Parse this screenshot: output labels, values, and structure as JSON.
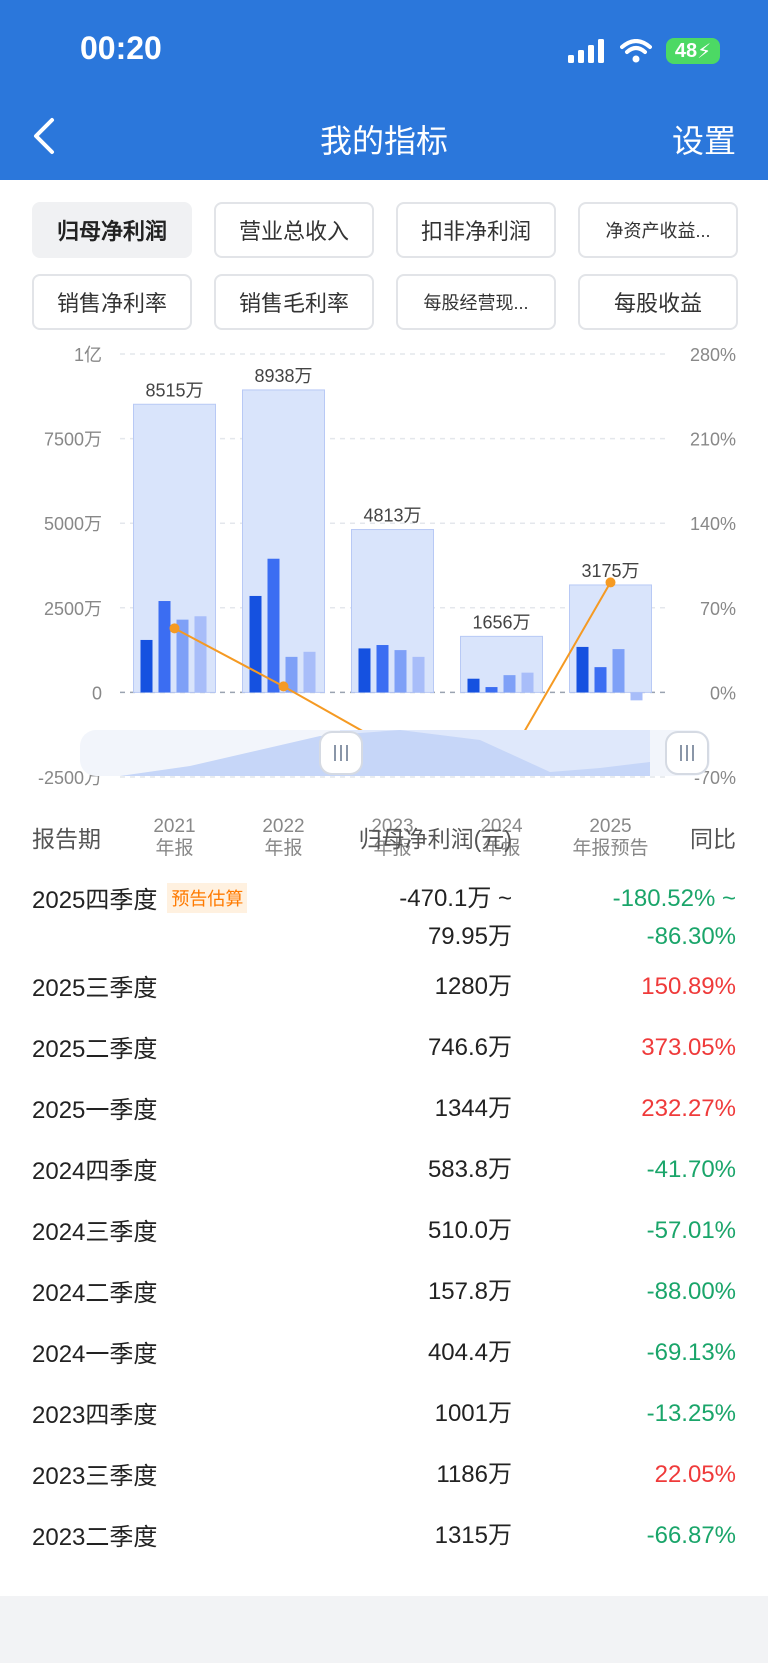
{
  "status_bar": {
    "time": "00:20",
    "battery": "48"
  },
  "nav": {
    "title": "我的指标",
    "settings_label": "设置"
  },
  "colors": {
    "header": "#2b77db",
    "bar_main": "#d9e4fb",
    "bar_dark": "#1551e0",
    "bar_mid": "#3b6df2",
    "bar_light": "#7ea0f7",
    "bar_lighter": "#a8bdf9",
    "line": "#f59a23",
    "up": "#ef3a3a",
    "down": "#1aa56a"
  },
  "tabs": [
    {
      "label": "归母净利润",
      "active": true
    },
    {
      "label": "营业总收入",
      "active": false
    },
    {
      "label": "扣非净利润",
      "active": false
    },
    {
      "label": "净资产收益...",
      "active": false
    },
    {
      "label": "销售净利率",
      "active": false
    },
    {
      "label": "销售毛利率",
      "active": false
    },
    {
      "label": "每股经营现...",
      "active": false
    },
    {
      "label": "每股收益",
      "active": false
    }
  ],
  "chart_data": {
    "type": "bar",
    "left_axis_ticks": [
      "1亿",
      "7500万",
      "5000万",
      "2500万",
      "0",
      "-2500万"
    ],
    "right_axis_ticks": [
      "280%",
      "210%",
      "140%",
      "70%",
      "0%",
      "-70%"
    ],
    "ylim_left": [
      -2500,
      10000
    ],
    "ylim_right": [
      -70,
      280
    ],
    "categories": [
      {
        "year": "2021",
        "label": "年报"
      },
      {
        "year": "2022",
        "label": "年报"
      },
      {
        "year": "2023",
        "label": "年报"
      },
      {
        "year": "2024",
        "label": "年报"
      },
      {
        "year": "2025",
        "label": "年报预告"
      }
    ],
    "annual_values": [
      8515,
      8938,
      4813,
      1656,
      3175
    ],
    "annual_labels": [
      "8515万",
      "8938万",
      "4813万",
      "1656万",
      "3175万"
    ],
    "quarterly_values": [
      [
        1550,
        2700,
        2150,
        2250
      ],
      [
        2850,
        3950,
        1050,
        1200
      ],
      [
        1300,
        1400,
        1250,
        1050
      ],
      [
        404.4,
        157.8,
        510.0,
        583.8
      ],
      [
        1344,
        746.6,
        1280,
        -235
      ]
    ],
    "yoy_percent": [
      53,
      5,
      -46,
      -65,
      91
    ]
  },
  "table": {
    "headers": {
      "period": "报告期",
      "value": "归母净利润(元)",
      "yoy": "同比"
    },
    "rows": [
      {
        "period": "2025四季度",
        "badge": "预告估算",
        "value": "-470.1万 ~\n79.95万",
        "yoy": "-180.52% ~\n-86.30%",
        "trend": "down"
      },
      {
        "period": "2025三季度",
        "value": "1280万",
        "yoy": "150.89%",
        "trend": "up"
      },
      {
        "period": "2025二季度",
        "value": "746.6万",
        "yoy": "373.05%",
        "trend": "up"
      },
      {
        "period": "2025一季度",
        "value": "1344万",
        "yoy": "232.27%",
        "trend": "up"
      },
      {
        "period": "2024四季度",
        "value": "583.8万",
        "yoy": "-41.70%",
        "trend": "down"
      },
      {
        "period": "2024三季度",
        "value": "510.0万",
        "yoy": "-57.01%",
        "trend": "down"
      },
      {
        "period": "2024二季度",
        "value": "157.8万",
        "yoy": "-88.00%",
        "trend": "down"
      },
      {
        "period": "2024一季度",
        "value": "404.4万",
        "yoy": "-69.13%",
        "trend": "down"
      },
      {
        "period": "2023四季度",
        "value": "1001万",
        "yoy": "-13.25%",
        "trend": "down"
      },
      {
        "period": "2023三季度",
        "value": "1186万",
        "yoy": "22.05%",
        "trend": "up"
      },
      {
        "period": "2023二季度",
        "value": "1315万",
        "yoy": "-66.87%",
        "trend": "down"
      }
    ]
  }
}
